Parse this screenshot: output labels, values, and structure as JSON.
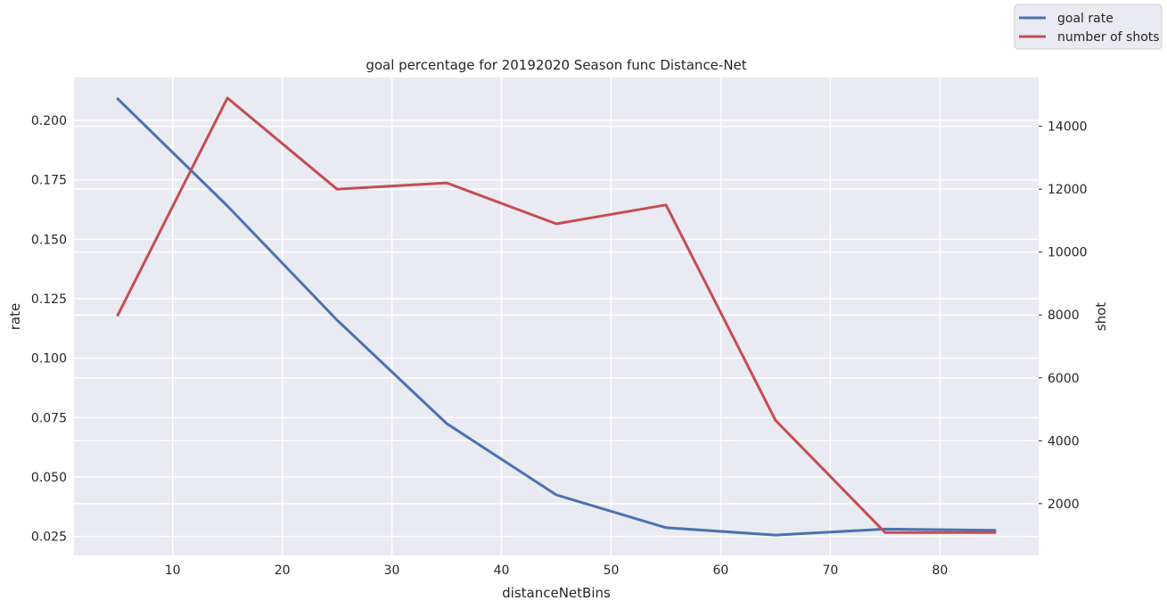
{
  "chart_data": {
    "type": "line",
    "title": "goal percentage for 20192020 Season func Distance-Net",
    "xlabel": "distanceNetBins",
    "ylabel_left": "rate",
    "ylabel_right": "shot",
    "xlim": [
      1.0,
      89.0
    ],
    "ylim_left": [
      0.017,
      0.218
    ],
    "ylim_right": [
      350,
      15550
    ],
    "x_ticks": [
      10,
      20,
      30,
      40,
      50,
      60,
      70,
      80
    ],
    "y_left_ticks": [
      "0.025",
      "0.050",
      "0.075",
      "0.100",
      "0.125",
      "0.150",
      "0.175",
      "0.200"
    ],
    "y_right_ticks": [
      2000,
      4000,
      6000,
      8000,
      10000,
      12000,
      14000
    ],
    "grid": true,
    "legend_position": "top-right",
    "x": [
      5,
      15,
      25,
      35,
      45,
      55,
      65,
      75,
      85
    ],
    "series": [
      {
        "name": "goal rate",
        "axis": "left",
        "color": "#4c72b0",
        "values": [
          0.209,
          0.164,
          0.116,
          0.0725,
          0.0425,
          0.0287,
          0.0256,
          0.0281,
          0.0276
        ]
      },
      {
        "name": "number of shots",
        "axis": "right",
        "color": "#c44e52",
        "values": [
          8000,
          14900,
          12000,
          12200,
          10900,
          11500,
          4650,
          1080,
          1080
        ]
      }
    ],
    "background_color": "#eaeaf2",
    "grid_color": "#ffffff"
  }
}
